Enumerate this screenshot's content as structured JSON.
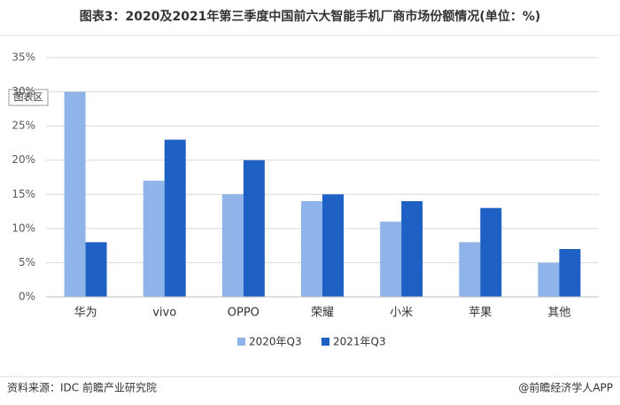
{
  "chart_data": {
    "type": "bar",
    "title": "图表3：2020及2021年第三季度中国前六大智能手机厂商市场份额情况(单位：%)",
    "annotation": "图表区",
    "categories": [
      "华为",
      "vivo",
      "OPPO",
      "荣耀",
      "小米",
      "苹果",
      "其他"
    ],
    "series": [
      {
        "name": "2020年Q3",
        "color": "#8eb4ea",
        "values": [
          30,
          17,
          15,
          14,
          11,
          8,
          5
        ]
      },
      {
        "name": "2021年Q3",
        "color": "#1f60c4",
        "values": [
          8,
          23,
          20,
          15,
          14,
          13,
          7
        ]
      }
    ],
    "ylim": [
      0,
      35
    ],
    "yticks": [
      {
        "value": 0,
        "label": "0%"
      },
      {
        "value": 5,
        "label": "5%"
      },
      {
        "value": 10,
        "label": "10%"
      },
      {
        "value": 15,
        "label": "15%"
      },
      {
        "value": 20,
        "label": "20%"
      },
      {
        "value": 25,
        "label": "25%"
      },
      {
        "value": 30,
        "label": "30%"
      },
      {
        "value": 35,
        "label": "35%"
      }
    ],
    "grid": true,
    "legend": "bottom",
    "source": "资料来源：IDC 前瞻产业研究院",
    "credit": "@前瞻经济学人APP"
  }
}
